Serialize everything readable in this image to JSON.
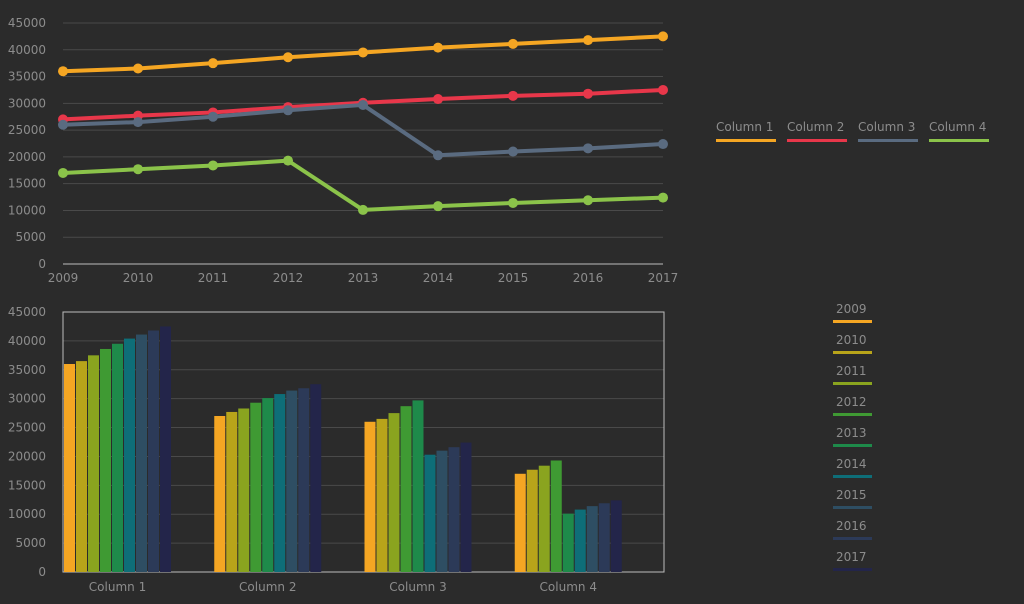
{
  "chart_data": [
    {
      "type": "line",
      "x": [
        "2009",
        "2010",
        "2011",
        "2012",
        "2013",
        "2014",
        "2015",
        "2016",
        "2017"
      ],
      "ylim": [
        0,
        45000
      ],
      "yticks": [
        "0",
        "5000",
        "10000",
        "15000",
        "20000",
        "25000",
        "30000",
        "35000",
        "40000",
        "45000"
      ],
      "grid": true,
      "legend_position": "right",
      "series": [
        {
          "name": "Column 1",
          "color": "#f5a623",
          "values": [
            36000,
            36500,
            37500,
            38600,
            39500,
            40400,
            41100,
            41800,
            42500
          ]
        },
        {
          "name": "Column 2",
          "color": "#e8374a",
          "values": [
            27000,
            27700,
            28300,
            29300,
            30100,
            30800,
            31400,
            31800,
            32500
          ]
        },
        {
          "name": "Column 3",
          "color": "#5a6b80",
          "values": [
            26000,
            26500,
            27500,
            28700,
            29700,
            20300,
            21000,
            21600,
            22400
          ]
        },
        {
          "name": "Column 4",
          "color": "#8bc34a",
          "values": [
            17000,
            17700,
            18400,
            19300,
            10100,
            10800,
            11400,
            11900,
            12400
          ]
        }
      ]
    },
    {
      "type": "bar",
      "categories": [
        "Column 1",
        "Column 2",
        "Column 3",
        "Column 4"
      ],
      "ylim": [
        0,
        45000
      ],
      "yticks": [
        "0",
        "5000",
        "10000",
        "15000",
        "20000",
        "25000",
        "30000",
        "35000",
        "40000",
        "45000"
      ],
      "grid": true,
      "legend_position": "right",
      "series": [
        {
          "name": "2009",
          "color": "#f5a623",
          "values": [
            36000,
            27000,
            26000,
            17000
          ]
        },
        {
          "name": "2010",
          "color": "#b8a41a",
          "values": [
            36500,
            27700,
            26500,
            17700
          ]
        },
        {
          "name": "2011",
          "color": "#8aa41f",
          "values": [
            37500,
            28300,
            27500,
            18400
          ]
        },
        {
          "name": "2012",
          "color": "#3f9a33",
          "values": [
            38600,
            29300,
            28700,
            19300
          ]
        },
        {
          "name": "2013",
          "color": "#1e8a4a",
          "values": [
            39500,
            30100,
            29700,
            10100
          ]
        },
        {
          "name": "2014",
          "color": "#0e6e78",
          "values": [
            40400,
            30800,
            20300,
            10800
          ]
        },
        {
          "name": "2015",
          "color": "#2e4e63",
          "values": [
            41100,
            31400,
            21000,
            11400
          ]
        },
        {
          "name": "2016",
          "color": "#2c3a58",
          "values": [
            41800,
            31800,
            21600,
            11900
          ]
        },
        {
          "name": "2017",
          "color": "#23254a",
          "values": [
            42500,
            32500,
            22400,
            12400
          ]
        }
      ]
    }
  ]
}
